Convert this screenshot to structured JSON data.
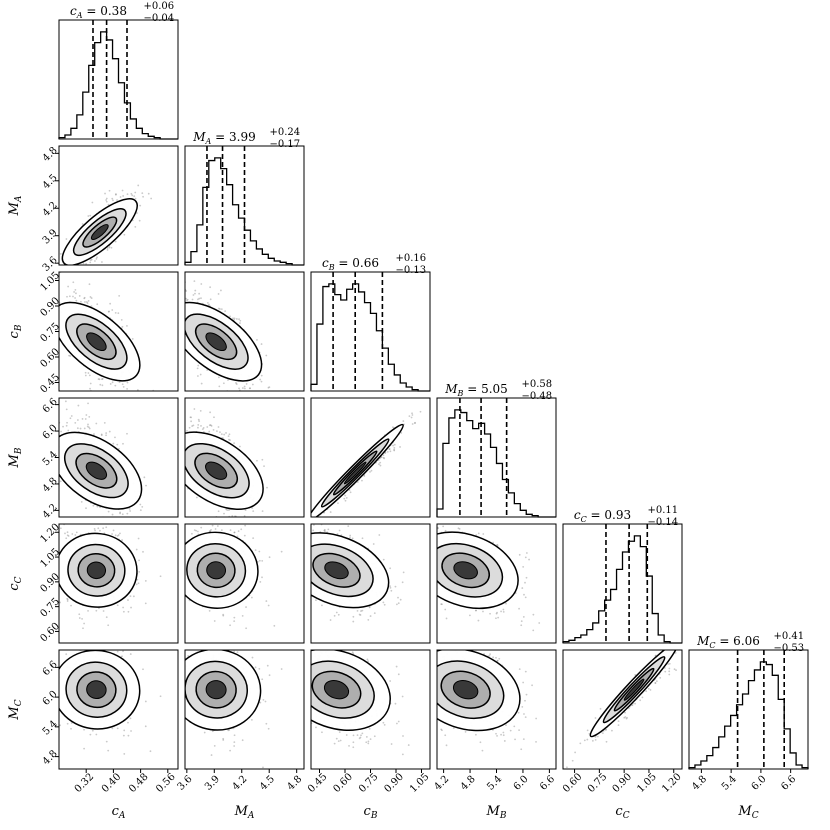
{
  "chart_data": {
    "type": "corner",
    "params": [
      {
        "key": "cA",
        "label": "c",
        "sub": "A",
        "ticks": [
          0.32,
          0.4,
          0.48,
          0.56
        ],
        "tick_labels": [
          "0.32",
          "0.40",
          "0.48",
          "0.56"
        ],
        "range": [
          0.24,
          0.59
        ],
        "median": 0.38,
        "plus": "+0.06",
        "minus": "−0.04",
        "q16": 0.34,
        "q84": 0.44,
        "title_num": "0.38",
        "sd": 0.05
      },
      {
        "key": "MA",
        "label": "M",
        "sub": "A",
        "ticks": [
          3.6,
          3.9,
          4.2,
          4.5,
          4.8
        ],
        "tick_labels": [
          "3.6",
          "3.9",
          "4.2",
          "4.5",
          "4.8"
        ],
        "range": [
          3.58,
          4.88
        ],
        "median": 3.99,
        "plus": "+0.24",
        "minus": "−0.17",
        "q16": 3.82,
        "q84": 4.23,
        "title_num": "3.99",
        "sd": 0.2
      },
      {
        "key": "cB",
        "label": "c",
        "sub": "B",
        "ticks": [
          0.45,
          0.6,
          0.75,
          0.9,
          1.05
        ],
        "tick_labels": [
          "0.45",
          "0.60",
          "0.75",
          "0.90",
          "1.05"
        ],
        "range": [
          0.4,
          1.1
        ],
        "median": 0.66,
        "plus": "+0.16",
        "minus": "−0.13",
        "q16": 0.53,
        "q84": 0.82,
        "title_num": "0.66",
        "sd": 0.14
      },
      {
        "key": "MB",
        "label": "M",
        "sub": "B",
        "ticks": [
          4.2,
          4.8,
          5.4,
          6.0,
          6.6
        ],
        "tick_labels": [
          "4.2",
          "4.8",
          "5.4",
          "6.0",
          "6.6"
        ],
        "range": [
          4.05,
          6.75
        ],
        "median": 5.05,
        "plus": "+0.58",
        "minus": "−0.48",
        "q16": 4.57,
        "q84": 5.63,
        "title_num": "5.05",
        "sd": 0.55
      },
      {
        "key": "cC",
        "label": "c",
        "sub": "C",
        "ticks": [
          0.6,
          0.75,
          0.9,
          1.05,
          1.2
        ],
        "tick_labels": [
          "0.60",
          "0.75",
          "0.90",
          "1.05",
          "1.20"
        ],
        "range": [
          0.53,
          1.25
        ],
        "median": 0.93,
        "plus": "+0.11",
        "minus": "−0.14",
        "q16": 0.79,
        "q84": 1.04,
        "title_num": "0.93",
        "sd": 0.13
      },
      {
        "key": "MC",
        "label": "M",
        "sub": "C",
        "ticks": [
          4.8,
          5.4,
          6.0,
          6.6
        ],
        "tick_labels": [
          "4.8",
          "5.4",
          "6.0",
          "6.6"
        ],
        "range": [
          4.55,
          6.95
        ],
        "median": 6.06,
        "plus": "+0.41",
        "minus": "−0.53",
        "q16": 5.53,
        "q84": 6.47,
        "title_num": "6.06",
        "sd": 0.48
      }
    ],
    "histograms": [
      {
        "param": "cA",
        "counts": [
          1,
          3,
          8,
          18,
          35,
          55,
          72,
          80,
          74,
          60,
          42,
          27,
          15,
          8,
          4,
          2,
          1,
          0,
          0,
          0
        ]
      },
      {
        "param": "MA",
        "counts": [
          2,
          10,
          30,
          58,
          78,
          80,
          72,
          60,
          45,
          35,
          26,
          18,
          12,
          8,
          5,
          3,
          2,
          1,
          0,
          0
        ]
      },
      {
        "param": "cB",
        "counts": [
          5,
          50,
          78,
          80,
          72,
          68,
          76,
          80,
          74,
          66,
          58,
          45,
          32,
          20,
          12,
          6,
          3,
          1,
          0,
          0
        ]
      },
      {
        "param": "MB",
        "counts": [
          6,
          55,
          74,
          80,
          78,
          72,
          66,
          70,
          62,
          52,
          40,
          28,
          18,
          10,
          5,
          2,
          1,
          0,
          0,
          0
        ]
      },
      {
        "param": "cC",
        "counts": [
          1,
          2,
          4,
          6,
          10,
          15,
          24,
          32,
          40,
          55,
          68,
          76,
          80,
          72,
          50,
          22,
          6,
          1,
          0,
          0
        ]
      },
      {
        "param": "MC",
        "counts": [
          1,
          3,
          6,
          10,
          16,
          24,
          32,
          40,
          48,
          56,
          66,
          74,
          80,
          78,
          70,
          52,
          30,
          12,
          3,
          1
        ]
      }
    ],
    "density_peaks": [
      {
        "x": "cA",
        "y": "MA",
        "peak": [
          0.36,
          3.94
        ],
        "correlation": 0.8
      },
      {
        "x": "cA",
        "y": "cB",
        "peak": [
          0.35,
          0.69
        ],
        "correlation": -0.6
      },
      {
        "x": "MA",
        "y": "cB",
        "peak": [
          3.92,
          0.69
        ],
        "correlation": -0.6
      },
      {
        "x": "cB",
        "y": "MB",
        "peak": [
          0.66,
          5.05
        ],
        "correlation": 0.99
      },
      {
        "x": "cA",
        "y": "MB",
        "peak": [
          0.35,
          5.1
        ],
        "correlation": -0.5
      },
      {
        "x": "MA",
        "y": "MB",
        "peak": [
          3.92,
          5.1
        ],
        "correlation": -0.5
      },
      {
        "x": "cA",
        "y": "cC",
        "peak": [
          0.35,
          0.97
        ],
        "correlation": -0.1
      },
      {
        "x": "MA",
        "y": "cC",
        "peak": [
          3.92,
          0.97
        ],
        "correlation": -0.1
      },
      {
        "x": "cB",
        "y": "cC",
        "peak": [
          0.55,
          0.97
        ],
        "correlation": -0.45
      },
      {
        "x": "MB",
        "y": "cC",
        "peak": [
          4.7,
          0.97
        ],
        "correlation": -0.4
      },
      {
        "x": "cA",
        "y": "MC",
        "peak": [
          0.35,
          6.15
        ],
        "correlation": -0.1
      },
      {
        "x": "MA",
        "y": "MC",
        "peak": [
          3.92,
          6.15
        ],
        "correlation": -0.1
      },
      {
        "x": "cB",
        "y": "MC",
        "peak": [
          0.55,
          6.15
        ],
        "correlation": -0.35
      },
      {
        "x": "MB",
        "y": "MC",
        "peak": [
          4.7,
          6.15
        ],
        "correlation": -0.35
      },
      {
        "x": "cC",
        "y": "MC",
        "peak": [
          0.96,
          6.15
        ],
        "correlation": 0.97
      }
    ],
    "colors": {
      "line": "#000000",
      "density": "#333333",
      "background": "#ffffff"
    }
  }
}
